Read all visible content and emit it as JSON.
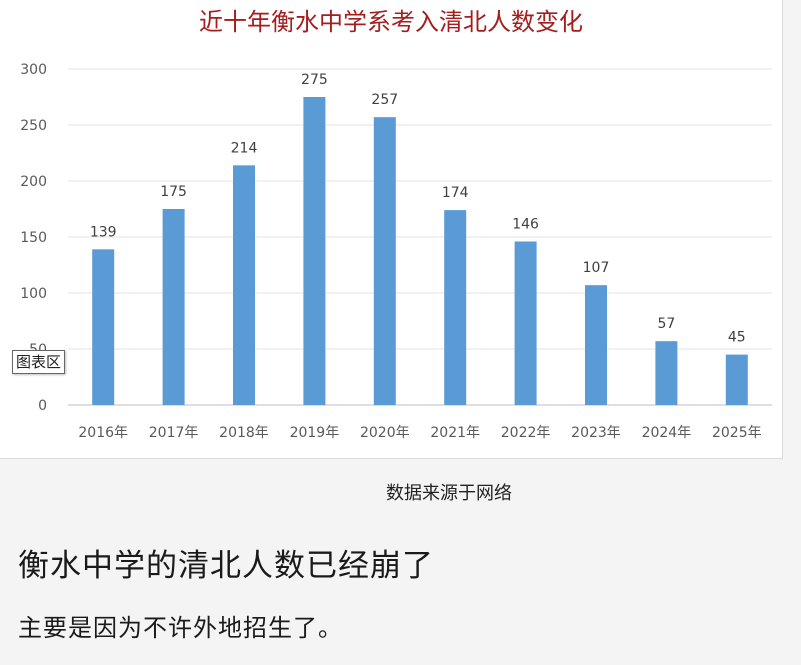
{
  "chart_data": {
    "type": "bar",
    "title": "近十年衡水中学系考入清北人数变化",
    "categories": [
      "2016年",
      "2017年",
      "2018年",
      "2019年",
      "2020年",
      "2021年",
      "2022年",
      "2023年",
      "2024年",
      "2025年"
    ],
    "values": [
      139,
      175,
      214,
      275,
      257,
      174,
      146,
      107,
      57,
      45
    ],
    "ylim": [
      0,
      300
    ],
    "yticks": [
      0,
      50,
      100,
      150,
      200,
      250,
      300
    ],
    "grid": true,
    "legend": "none",
    "bar_color": "#5b9bd5",
    "title_color": "#a51d1d"
  },
  "overlay": {
    "tooltip": "图表区"
  },
  "source_note": "数据来源于网络",
  "post": {
    "headline": "衡水中学的清北人数已经崩了",
    "body": "主要是因为不许外地招生了。"
  }
}
